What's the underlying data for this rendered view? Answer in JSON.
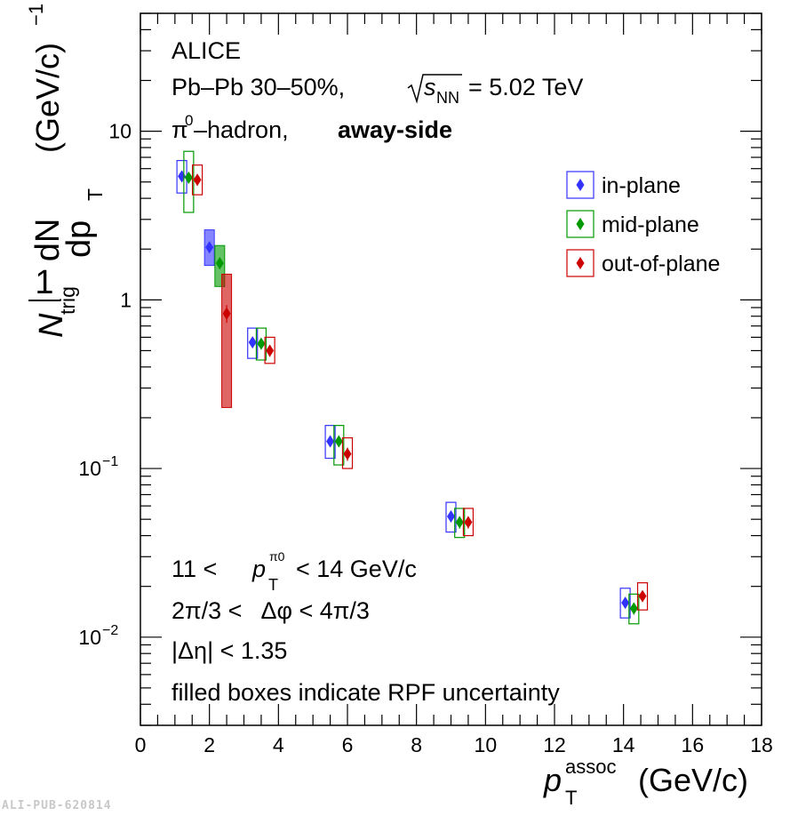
{
  "header": {
    "experiment": "ALICE",
    "system": "Pb–Pb 30–50%,",
    "energy_symbol": "s",
    "energy_sub": "NN",
    "energy_value": "= 5.02 TeV",
    "pair": "π0–hadron,",
    "pair_sup": "0",
    "side": "away-side"
  },
  "cuts": {
    "line1_left": "11 <",
    "line1_p": "p",
    "line1_sub": "T",
    "line1_sup": "π0",
    "line1_right": "< 14 GeV/c",
    "line2": "2π/3 <   Δφ < 4π/3",
    "line3": "|Δη| < 1.35",
    "line4": "filled boxes indicate RPF uncertainty"
  },
  "axes": {
    "xlabel_p": "p",
    "xlabel_sub": "T",
    "xlabel_sup": "assoc",
    "xlabel_unit": "(GeV/c)",
    "ylabel_frac_num": "1",
    "ylabel_frac_den": "N",
    "ylabel_frac_den_sub": "trig",
    "ylabel_dn": "dN",
    "ylabel_dp": "dp",
    "ylabel_dp_sub": "T",
    "ylabel_unit": "(GeV/c)",
    "ylabel_unit_sup": "−1",
    "x_ticks": [
      "0",
      "2",
      "4",
      "6",
      "8",
      "10",
      "12",
      "14",
      "16",
      "18"
    ],
    "y_ticks": [
      {
        "label": "10",
        "sup": "−2",
        "value": 0.01
      },
      {
        "label": "10",
        "sup": "−1",
        "value": 0.1
      },
      {
        "label": "1",
        "sup": "",
        "value": 1
      },
      {
        "label": "10",
        "sup": "",
        "value": 10
      }
    ]
  },
  "footer": {
    "pub_id": "ALI-PUB-620814"
  },
  "chart_data": {
    "type": "scatter",
    "xlim": [
      0,
      18
    ],
    "ylim": [
      0.003,
      50
    ],
    "y_scale": "log",
    "grid": false,
    "legend_position": "top-right",
    "series": [
      {
        "name": "in-plane",
        "color": "#3333ff",
        "x": [
          1.2,
          2.0,
          3.25,
          5.5,
          9.0,
          14.05
        ],
        "y": [
          5.4,
          2.05,
          0.56,
          0.145,
          0.052,
          0.016
        ],
        "stat_err": [
          0.4,
          0.15,
          0.04,
          0.011,
          0.004,
          0.0012
        ],
        "syst_low": [
          4.3,
          1.6,
          0.45,
          0.115,
          0.042,
          0.013
        ],
        "syst_high": [
          6.7,
          2.6,
          0.68,
          0.18,
          0.063,
          0.0195
        ],
        "rpf_filled": [
          false,
          true,
          false,
          false,
          false,
          false
        ]
      },
      {
        "name": "mid-plane",
        "color": "#009900",
        "x": [
          1.4,
          2.3,
          3.5,
          5.75,
          9.25,
          14.3
        ],
        "y": [
          5.3,
          1.65,
          0.55,
          0.145,
          0.048,
          0.0148
        ],
        "stat_err": [
          0.4,
          0.13,
          0.04,
          0.011,
          0.004,
          0.0012
        ],
        "syst_low": [
          3.3,
          1.2,
          0.44,
          0.105,
          0.039,
          0.012
        ],
        "syst_high": [
          7.6,
          2.1,
          0.68,
          0.18,
          0.058,
          0.018
        ],
        "rpf_filled": [
          false,
          true,
          false,
          false,
          false,
          false
        ]
      },
      {
        "name": "out-of-plane",
        "color": "#cc0000",
        "x": [
          1.65,
          2.5,
          3.75,
          6.0,
          9.5,
          14.55
        ],
        "y": [
          5.15,
          0.83,
          0.5,
          0.122,
          0.048,
          0.0175
        ],
        "stat_err": [
          0.4,
          0.1,
          0.04,
          0.011,
          0.004,
          0.0013
        ],
        "syst_low": [
          4.2,
          0.23,
          0.42,
          0.1,
          0.04,
          0.0145
        ],
        "syst_high": [
          6.3,
          1.42,
          0.6,
          0.152,
          0.058,
          0.021
        ],
        "rpf_filled": [
          false,
          true,
          false,
          false,
          false,
          false
        ]
      }
    ]
  }
}
